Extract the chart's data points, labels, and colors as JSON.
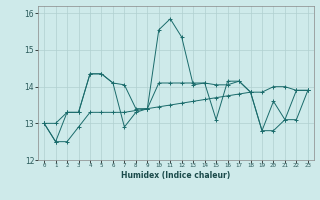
{
  "xlabel": "Humidex (Indice chaleur)",
  "ylabel": "",
  "background_color": "#ceeaea",
  "grid_color": "#b0d0d0",
  "line_color": "#1a6b6b",
  "xlim": [
    -0.5,
    23.5
  ],
  "ylim": [
    12,
    16.2
  ],
  "yticks": [
    12,
    13,
    14,
    15,
    16
  ],
  "xticks": [
    0,
    1,
    2,
    3,
    4,
    5,
    6,
    7,
    8,
    9,
    10,
    11,
    12,
    13,
    14,
    15,
    16,
    17,
    18,
    19,
    20,
    21,
    22,
    23
  ],
  "series1": [
    13.0,
    12.5,
    13.3,
    13.3,
    14.35,
    14.35,
    14.1,
    12.9,
    13.3,
    13.4,
    15.55,
    15.85,
    15.35,
    14.05,
    14.1,
    13.1,
    14.15,
    14.15,
    13.85,
    12.8,
    13.6,
    13.1,
    13.9,
    13.9
  ],
  "series2": [
    13.0,
    13.0,
    13.3,
    13.3,
    14.35,
    14.35,
    14.1,
    14.05,
    13.4,
    13.4,
    14.1,
    14.1,
    14.1,
    14.1,
    14.1,
    14.05,
    14.05,
    14.15,
    13.85,
    13.85,
    14.0,
    14.0,
    13.9,
    13.9
  ],
  "series3": [
    13.0,
    12.5,
    12.5,
    12.9,
    13.3,
    13.3,
    13.3,
    13.3,
    13.35,
    13.4,
    13.45,
    13.5,
    13.55,
    13.6,
    13.65,
    13.7,
    13.75,
    13.8,
    13.85,
    12.8,
    12.8,
    13.1,
    13.1,
    13.9
  ]
}
